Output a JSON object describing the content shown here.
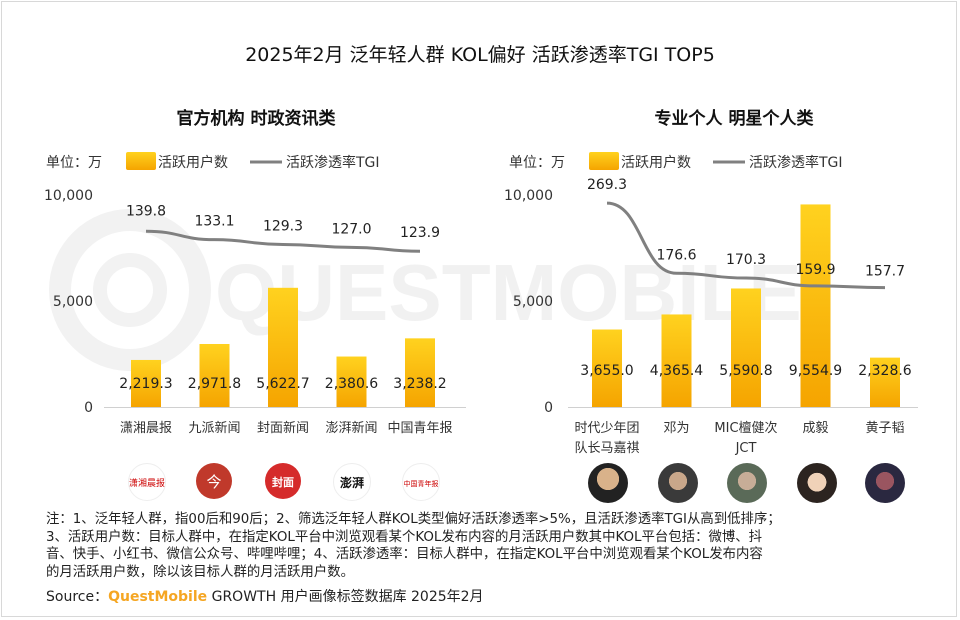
{
  "title": "2025年2月 泛年轻人群 KOL偏好 活跃渗透率TGI TOP5",
  "watermark": "QUESTMOBILE",
  "legend": {
    "bar": "活跃用户数",
    "line": "活跃渗透率TGI",
    "unit": "单位：万"
  },
  "colors": {
    "bar_top": "#ffd21f",
    "bar_bottom": "#f5a400",
    "line": "#808080",
    "accent": "#f5a623"
  },
  "chart_data": [
    {
      "type": "bar",
      "title": "官方机构 时政资讯类",
      "categories": [
        "潇湘晨报",
        "九派新闻",
        "封面新闻",
        "澎湃新闻",
        "中国青年报"
      ],
      "series": [
        {
          "name": "活跃用户数",
          "type": "bar",
          "values": [
            2219.3,
            2971.8,
            5622.7,
            2380.6,
            3238.2
          ],
          "labels": [
            "2,219.3",
            "2,971.8",
            "5,622.7",
            "2,380.6",
            "3,238.2"
          ]
        },
        {
          "name": "活跃渗透率TGI",
          "type": "line",
          "values": [
            139.8,
            133.1,
            129.3,
            127.0,
            123.9
          ],
          "labels": [
            "139.8",
            "133.1",
            "129.3",
            "127.0",
            "123.9"
          ]
        }
      ],
      "yticks": [
        "0",
        "5,000",
        "10,000"
      ],
      "ylim": [
        0,
        10000
      ],
      "tgi_range": [
        0,
        280
      ],
      "logos": [
        "潇湘晨报",
        "今",
        "封面",
        "澎湃",
        "中国青年报"
      ]
    },
    {
      "type": "bar",
      "title": "专业个人 明星个人类",
      "categories": [
        "时代少年团队长马嘉祺",
        "邓为",
        "MIC檀健次JCT",
        "成毅",
        "黄子韬"
      ],
      "category_lines": [
        [
          "时代少年团",
          "队长马嘉祺"
        ],
        [
          "邓为"
        ],
        [
          "MIC檀健次",
          "JCT"
        ],
        [
          "成毅"
        ],
        [
          "黄子韬"
        ]
      ],
      "series": [
        {
          "name": "活跃用户数",
          "type": "bar",
          "values": [
            3655.0,
            4365.4,
            5590.8,
            9554.9,
            2328.6
          ],
          "labels": [
            "3,655.0",
            "4,365.4",
            "5,590.8",
            "9,554.9",
            "2,328.6"
          ]
        },
        {
          "name": "活跃渗透率TGI",
          "type": "line",
          "values": [
            269.3,
            176.6,
            170.3,
            159.9,
            157.7
          ],
          "labels": [
            "269.3",
            "176.6",
            "170.3",
            "159.9",
            "157.7"
          ]
        }
      ],
      "yticks": [
        "0",
        "5,000",
        "10,000"
      ],
      "ylim": [
        0,
        10000
      ],
      "tgi_range": [
        0,
        280
      ]
    }
  ],
  "note": {
    "lines": [
      "注：1、泛年轻人群，指00后和90后；2、筛选泛年轻人群KOL类型偏好活跃渗透率>5%，且活跃渗透率TGI从高到低排序；",
      "3、活跃用户数：目标人群中，在指定KOL平台中浏览观看某个KOL发布内容的月活跃用户数其中KOL平台包括：微博、抖",
      "音、快手、小红书、微信公众号、哔哩哔哩；4、活跃渗透率：目标人群中，在指定KOL平台中浏览观看某个KOL发布内容",
      "的月活跃用户数，除以该目标人群的月活跃用户数。"
    ],
    "source_label": "Source：",
    "source_brand": "QuestMobile",
    "source_rest": " GROWTH 用户画像标签数据库 2025年2月"
  }
}
